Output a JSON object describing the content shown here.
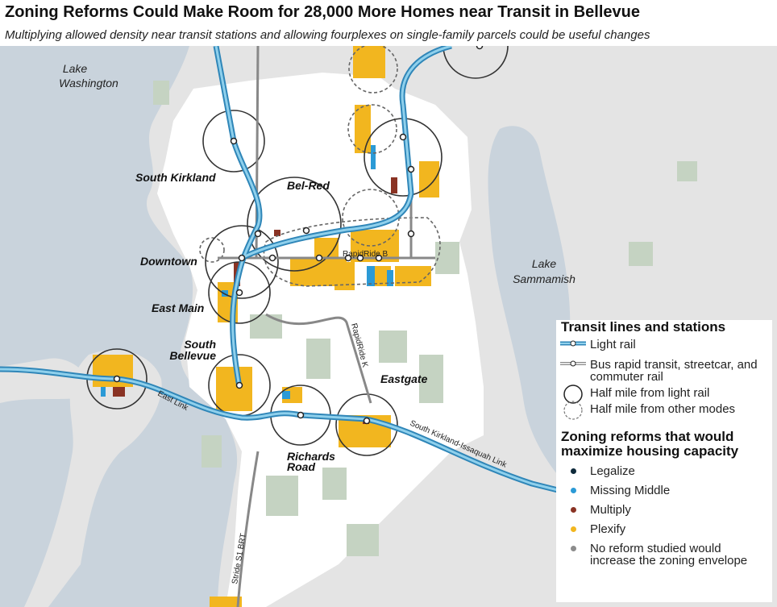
{
  "title": "Zoning Reforms Could Make Room for 28,000 More Homes near Transit in Bellevue",
  "subtitle": "Multiplying allowed density near transit stations and allowing fourplexes on single-family parcels could be useful changes",
  "map": {
    "lakes": [
      "Lake\nWashington",
      "Lake\nSammamish"
    ],
    "lake_labels": {
      "washington_1": "Lake",
      "washington_2": "Washington",
      "sammamish_1": "Lake",
      "sammamish_2": "Sammamish"
    },
    "places": {
      "south_kirkland": "South Kirkland",
      "bel_red": "Bel-Red",
      "downtown": "Downtown",
      "east_main": "East Main",
      "south_bellevue_1": "South",
      "south_bellevue_2": "Bellevue",
      "eastgate": "Eastgate",
      "richards_road_1": "Richards",
      "richards_road_2": "Road"
    },
    "lines": {
      "rapidride_b": "RapidRide B",
      "rapidride_k": "RapidRide K",
      "east_link": "East Link",
      "south_kirkland_issaquah": "South Kirkland-Issaquah Link",
      "stride": "Stride S1 BRT"
    },
    "colors": {
      "water": "#c9d3dc",
      "land": "#e4e4e4",
      "city": "#ffffff",
      "park": "#c5d3c2",
      "light_rail": "#8fd0ec",
      "light_rail_edge": "#2f86b8",
      "legalize": "#0e2a3b",
      "missing_middle": "#2b9ad6",
      "multiply": "#8a3324",
      "plexify": "#f2b61f",
      "no_reform": "#8c8c8c"
    }
  },
  "legend": {
    "transit_heading": "Transit lines and stations",
    "transit_items": [
      {
        "label": "Light rail",
        "icon": "light-rail-line-icon"
      },
      {
        "label": "Bus rapid transit, streetcar, and commuter rail",
        "icon": "brt-line-icon"
      },
      {
        "label": "Half mile from light rail",
        "icon": "solid-circle-icon"
      },
      {
        "label": "Half mile from other modes",
        "icon": "dashed-circle-icon"
      }
    ],
    "zoning_heading": "Zoning reforms that would maximize housing capacity",
    "zoning_items": [
      {
        "label": "Legalize",
        "color": "#0e2a3b"
      },
      {
        "label": "Missing Middle",
        "color": "#2b9ad6"
      },
      {
        "label": "Multiply",
        "color": "#8a3324"
      },
      {
        "label": "Plexify",
        "color": "#f2b61f"
      },
      {
        "label": "No reform studied would increase the zoning envelope",
        "color": "#8c8c8c"
      }
    ]
  }
}
